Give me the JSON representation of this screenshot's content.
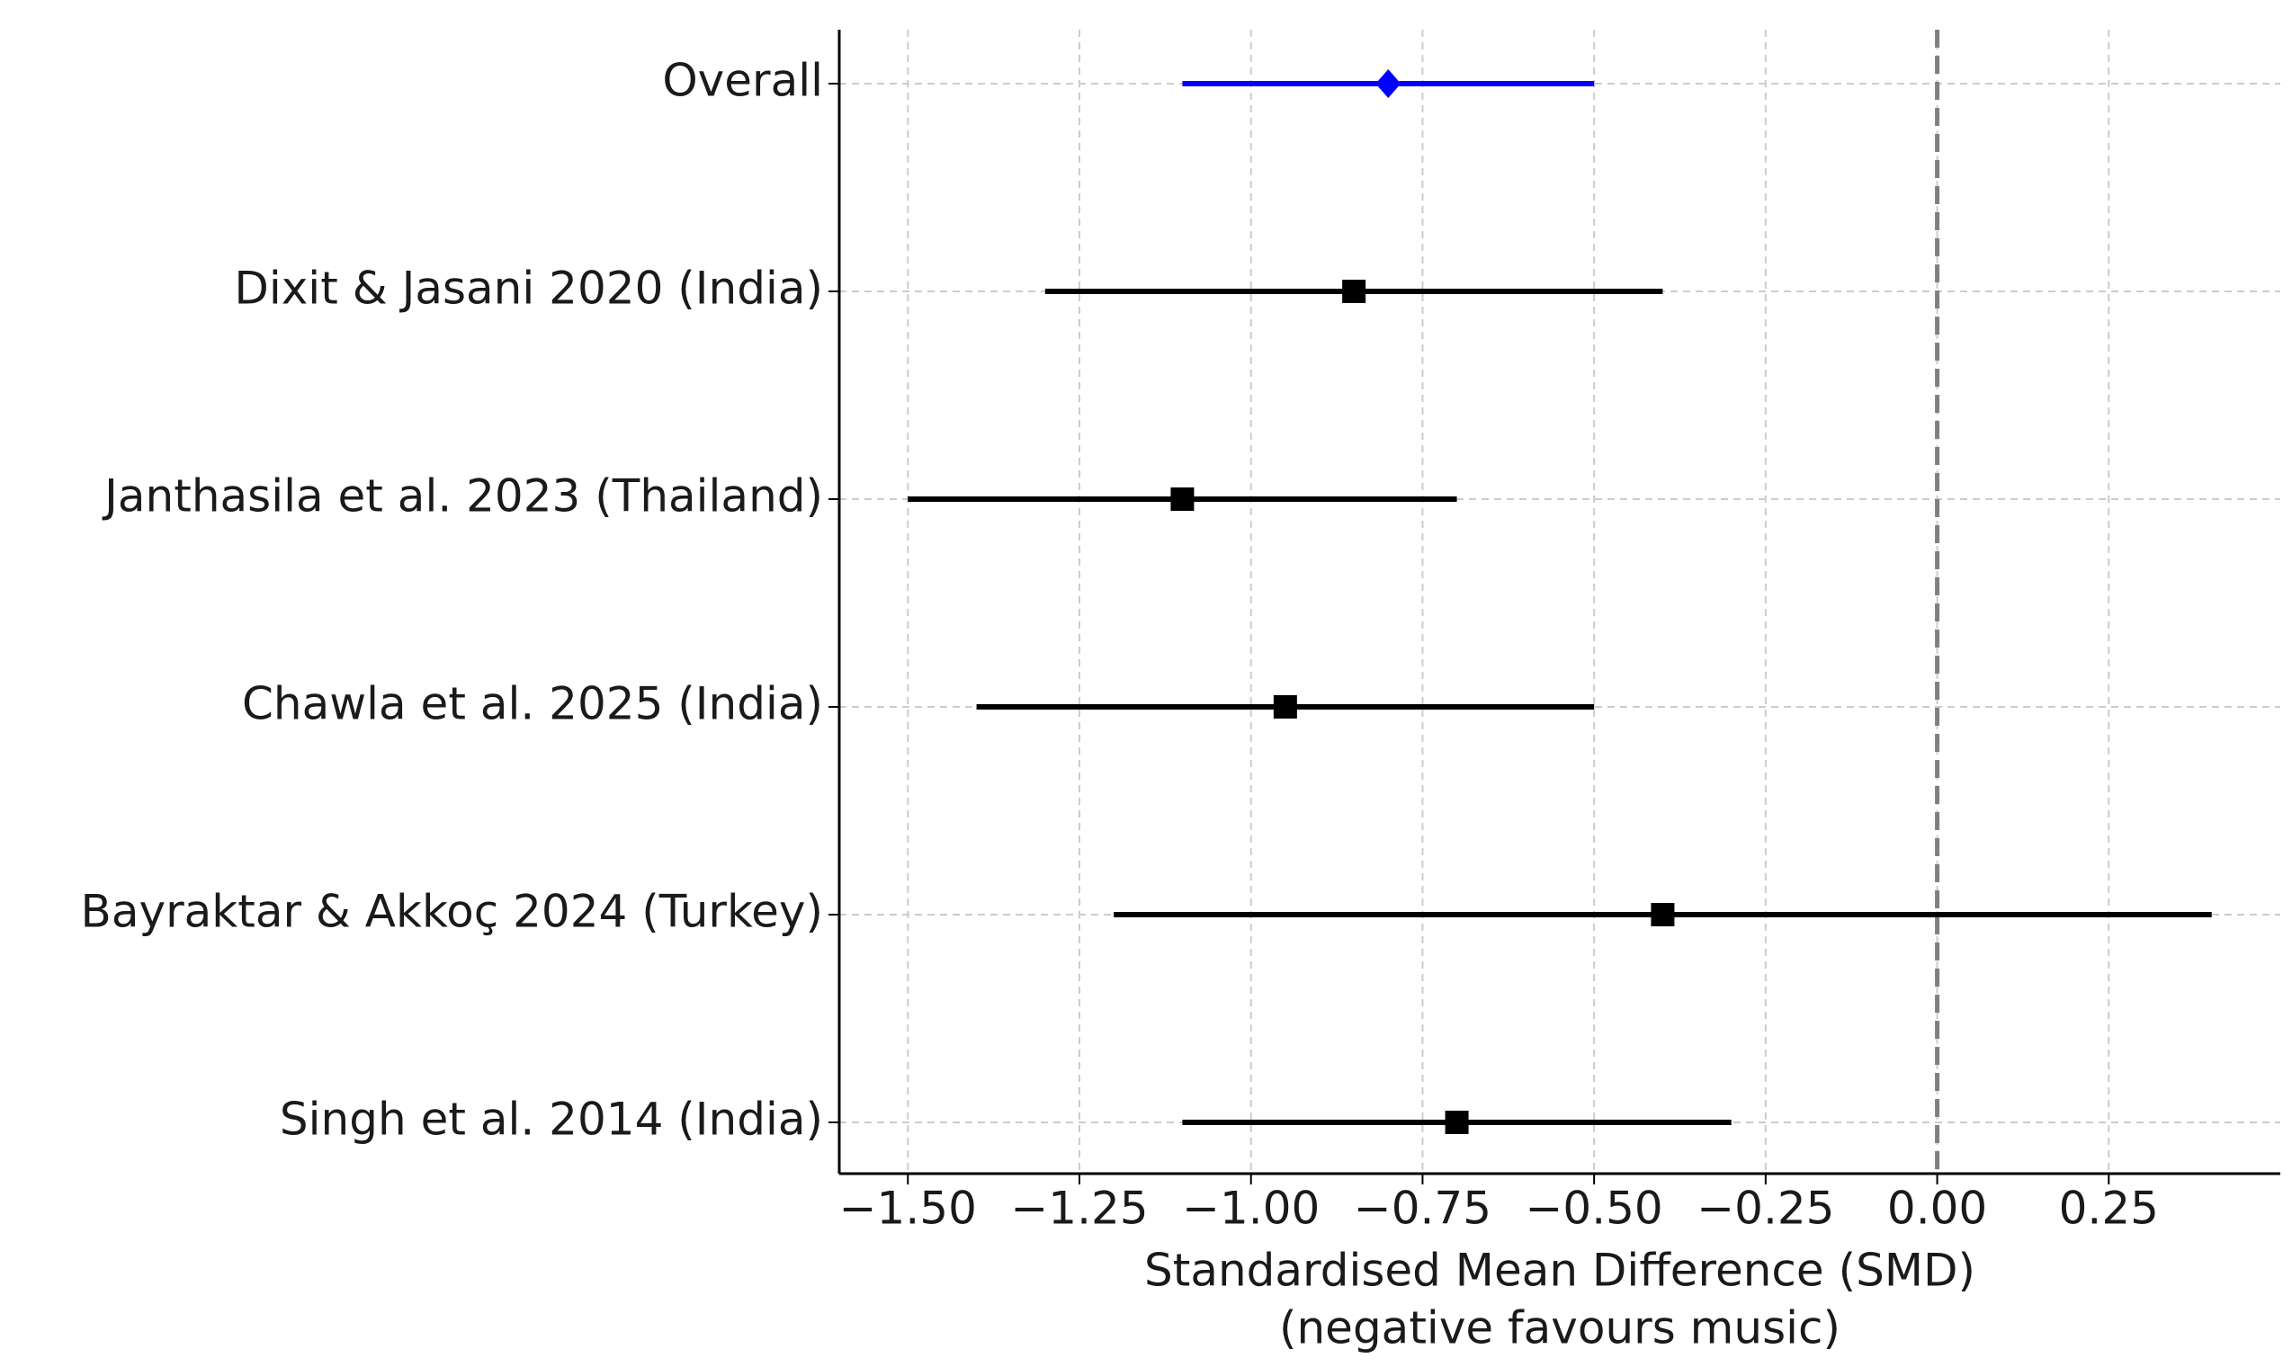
{
  "chart_data": {
    "type": "forest",
    "categories": [
      "Overall",
      "Dixit & Jasani 2020 (India)",
      "Janthasila et al. 2023 (Thailand)",
      "Chawla et al. 2025 (India)",
      "Bayraktar & Akkoç 2024 (Turkey)",
      "Singh et al. 2014 (India)"
    ],
    "values": [
      -0.8,
      -0.85,
      -1.1,
      -0.95,
      -0.4,
      -0.7
    ],
    "lower": [
      -1.1,
      -1.3,
      -1.5,
      -1.4,
      -1.2,
      -1.1
    ],
    "upper": [
      -0.5,
      -0.4,
      -0.7,
      -0.5,
      0.4,
      -0.3
    ],
    "colors": [
      "#0000ff",
      "#000000",
      "#000000",
      "#000000",
      "#000000",
      "#000000"
    ],
    "markers": [
      "diamond",
      "square",
      "square",
      "square",
      "square",
      "square"
    ],
    "xlabel": [
      "Standardised Mean Difference (SMD)",
      "(negative favours music)"
    ],
    "xlim": [
      -1.6,
      0.5
    ],
    "xticks": [
      {
        "value": -1.5,
        "label": "−1.50"
      },
      {
        "value": -1.25,
        "label": "−1.25"
      },
      {
        "value": -1.0,
        "label": "−1.00"
      },
      {
        "value": -0.75,
        "label": "−0.75"
      },
      {
        "value": -0.5,
        "label": "−0.50"
      },
      {
        "value": -0.25,
        "label": "−0.25"
      },
      {
        "value": 0,
        "label": "0.00"
      },
      0.25
    ],
    "reference_line": 0,
    "grid": true
  }
}
